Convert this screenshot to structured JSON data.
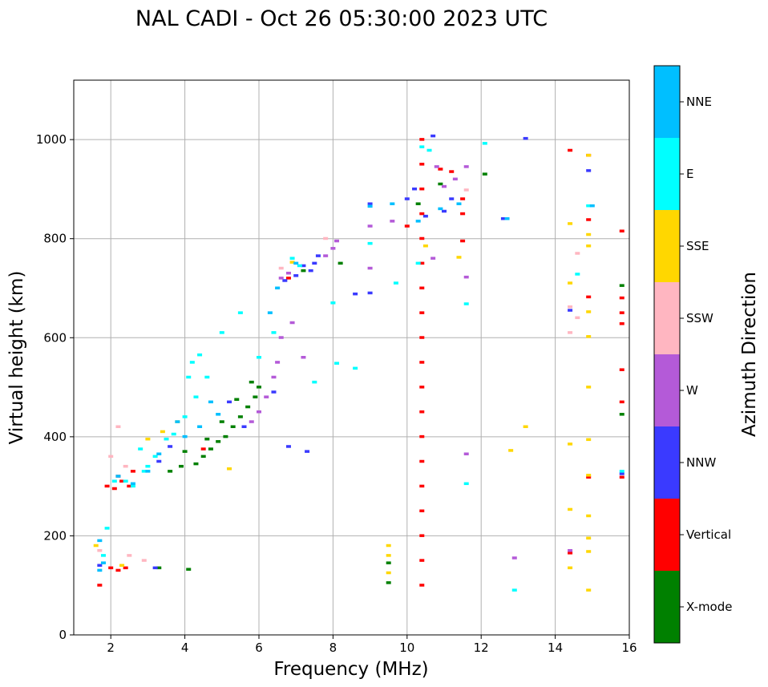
{
  "chart_data": {
    "type": "scatter",
    "title": "NAL CADI - Oct 26 05:30:00 2023 UTC",
    "xlabel": "Frequency (MHz)",
    "ylabel": "Virtual height (km)",
    "xlim": [
      1,
      16
    ],
    "ylim": [
      0,
      1120
    ],
    "xticks": [
      2,
      4,
      6,
      8,
      10,
      12,
      14,
      16
    ],
    "yticks": [
      0,
      200,
      400,
      600,
      800,
      1000
    ],
    "grid": true,
    "colorbar": {
      "label": "Azimuth Direction",
      "categories": [
        {
          "name": "X-mode",
          "color": "#008000"
        },
        {
          "name": "Vertical",
          "color": "#ff0000"
        },
        {
          "name": "NNW",
          "color": "#3a3aff"
        },
        {
          "name": "W",
          "color": "#b45ad8"
        },
        {
          "name": "SSW",
          "color": "#ffb6c1"
        },
        {
          "name": "SSE",
          "color": "#ffd700"
        },
        {
          "name": "E",
          "color": "#00ffff"
        },
        {
          "name": "NNE",
          "color": "#00bfff"
        }
      ]
    },
    "series": [
      {
        "name": "X-mode",
        "points": [
          [
            4.3,
            345
          ],
          [
            4.5,
            360
          ],
          [
            4.7,
            375
          ],
          [
            4.9,
            390
          ],
          [
            5.1,
            400
          ],
          [
            5.3,
            420
          ],
          [
            5.5,
            440
          ],
          [
            5.7,
            460
          ],
          [
            5.9,
            480
          ],
          [
            6.0,
            500
          ],
          [
            3.9,
            340
          ],
          [
            3.6,
            330
          ],
          [
            4.0,
            370
          ],
          [
            4.6,
            395
          ],
          [
            5.0,
            430
          ],
          [
            5.4,
            475
          ],
          [
            3.3,
            135
          ],
          [
            4.1,
            132
          ],
          [
            9.5,
            145
          ],
          [
            9.5,
            105
          ],
          [
            10.3,
            870
          ],
          [
            10.9,
            910
          ],
          [
            12.1,
            930
          ],
          [
            15.8,
            445
          ],
          [
            15.8,
            705
          ],
          [
            7.2,
            735
          ],
          [
            8.2,
            750
          ],
          [
            5.8,
            510
          ]
        ]
      },
      {
        "name": "Vertical",
        "points": [
          [
            1.9,
            300
          ],
          [
            2.1,
            295
          ],
          [
            2.3,
            310
          ],
          [
            2.5,
            300
          ],
          [
            2.2,
            320
          ],
          [
            2.0,
            135
          ],
          [
            2.2,
            130
          ],
          [
            2.4,
            135
          ],
          [
            1.7,
            100
          ],
          [
            10.4,
            100
          ],
          [
            10.4,
            150
          ],
          [
            10.4,
            200
          ],
          [
            10.4,
            250
          ],
          [
            10.4,
            300
          ],
          [
            10.4,
            350
          ],
          [
            10.4,
            400
          ],
          [
            10.4,
            450
          ],
          [
            10.4,
            500
          ],
          [
            10.4,
            550
          ],
          [
            10.4,
            600
          ],
          [
            10.4,
            650
          ],
          [
            10.4,
            700
          ],
          [
            10.4,
            750
          ],
          [
            10.4,
            800
          ],
          [
            10.4,
            850
          ],
          [
            10.4,
            900
          ],
          [
            10.4,
            950
          ],
          [
            10.4,
            1000
          ],
          [
            10.0,
            825
          ],
          [
            10.9,
            940
          ],
          [
            11.2,
            935
          ],
          [
            11.5,
            880
          ],
          [
            11.5,
            795
          ],
          [
            11.5,
            850
          ],
          [
            14.4,
            978
          ],
          [
            14.9,
            968
          ],
          [
            14.9,
            838
          ],
          [
            14.9,
            682
          ],
          [
            14.9,
            318
          ],
          [
            15.8,
            318
          ],
          [
            15.8,
            650
          ],
          [
            15.8,
            628
          ],
          [
            15.8,
            680
          ],
          [
            15.8,
            535
          ],
          [
            15.8,
            470
          ],
          [
            15.8,
            815
          ],
          [
            14.4,
            165
          ],
          [
            6.8,
            720
          ],
          [
            4.5,
            375
          ],
          [
            2.6,
            330
          ]
        ]
      },
      {
        "name": "NNW",
        "points": [
          [
            7.6,
            765
          ],
          [
            7.5,
            750
          ],
          [
            7.4,
            735
          ],
          [
            7.2,
            745
          ],
          [
            7.0,
            725
          ],
          [
            6.7,
            715
          ],
          [
            3.3,
            350
          ],
          [
            3.6,
            380
          ],
          [
            3.2,
            135
          ],
          [
            9.0,
            870
          ],
          [
            9.0,
            690
          ],
          [
            8.6,
            688
          ],
          [
            10.0,
            880
          ],
          [
            10.2,
            900
          ],
          [
            10.7,
            1007
          ],
          [
            11.2,
            880
          ],
          [
            11.0,
            855
          ],
          [
            12.6,
            840
          ],
          [
            13.2,
            1002
          ],
          [
            14.9,
            937
          ],
          [
            14.4,
            655
          ],
          [
            15.8,
            325
          ],
          [
            5.2,
            470
          ],
          [
            5.6,
            420
          ],
          [
            6.4,
            490
          ],
          [
            6.8,
            380
          ],
          [
            7.3,
            370
          ],
          [
            1.7,
            140
          ],
          [
            10.5,
            845
          ]
        ]
      },
      {
        "name": "W",
        "points": [
          [
            8.1,
            795
          ],
          [
            8.0,
            780
          ],
          [
            7.8,
            765
          ],
          [
            6.6,
            600
          ],
          [
            6.5,
            550
          ],
          [
            6.4,
            520
          ],
          [
            6.2,
            480
          ],
          [
            6.0,
            450
          ],
          [
            5.8,
            430
          ],
          [
            6.8,
            730
          ],
          [
            6.6,
            720
          ],
          [
            9.0,
            740
          ],
          [
            9.0,
            825
          ],
          [
            9.6,
            835
          ],
          [
            10.8,
            945
          ],
          [
            11.0,
            905
          ],
          [
            11.3,
            920
          ],
          [
            11.6,
            945
          ],
          [
            11.6,
            722
          ],
          [
            11.6,
            365
          ],
          [
            12.9,
            155
          ],
          [
            14.4,
            170
          ],
          [
            10.7,
            760
          ],
          [
            6.9,
            630
          ],
          [
            7.2,
            560
          ]
        ]
      },
      {
        "name": "SSW",
        "points": [
          [
            2.0,
            360
          ],
          [
            2.4,
            340
          ],
          [
            2.2,
            420
          ],
          [
            1.7,
            170
          ],
          [
            2.5,
            160
          ],
          [
            2.9,
            150
          ],
          [
            7.8,
            800
          ],
          [
            11.6,
            898
          ],
          [
            14.6,
            770
          ],
          [
            14.4,
            610
          ],
          [
            14.6,
            640
          ],
          [
            14.4,
            662
          ],
          [
            6.6,
            740
          ]
        ]
      },
      {
        "name": "SSE",
        "points": [
          [
            9.5,
            180
          ],
          [
            9.5,
            160
          ],
          [
            9.5,
            125
          ],
          [
            2.3,
            140
          ],
          [
            3.0,
            395
          ],
          [
            3.4,
            410
          ],
          [
            3.8,
            430
          ],
          [
            14.9,
            968
          ],
          [
            14.9,
            808
          ],
          [
            14.9,
            785
          ],
          [
            14.9,
            652
          ],
          [
            14.9,
            602
          ],
          [
            14.9,
            500
          ],
          [
            14.9,
            394
          ],
          [
            14.9,
            322
          ],
          [
            14.9,
            240
          ],
          [
            14.9,
            195
          ],
          [
            14.9,
            168
          ],
          [
            14.9,
            90
          ],
          [
            14.4,
            710
          ],
          [
            14.4,
            385
          ],
          [
            14.4,
            253
          ],
          [
            14.4,
            135
          ],
          [
            14.4,
            830
          ],
          [
            13.2,
            420
          ],
          [
            12.8,
            372
          ],
          [
            11.4,
            762
          ],
          [
            10.5,
            785
          ],
          [
            6.9,
            752
          ],
          [
            5.2,
            335
          ],
          [
            1.6,
            180
          ]
        ]
      },
      {
        "name": "E",
        "points": [
          [
            3.0,
            340
          ],
          [
            3.2,
            360
          ],
          [
            3.5,
            395
          ],
          [
            3.7,
            405
          ],
          [
            4.0,
            440
          ],
          [
            4.1,
            520
          ],
          [
            4.2,
            550
          ],
          [
            4.4,
            565
          ],
          [
            2.9,
            330
          ],
          [
            2.6,
            300
          ],
          [
            2.4,
            310
          ],
          [
            2.1,
            310
          ],
          [
            2.8,
            375
          ],
          [
            6.0,
            560
          ],
          [
            6.4,
            610
          ],
          [
            6.9,
            760
          ],
          [
            7.1,
            745
          ],
          [
            7.5,
            510
          ],
          [
            8.0,
            670
          ],
          [
            8.1,
            548
          ],
          [
            8.6,
            538
          ],
          [
            9.0,
            790
          ],
          [
            9.7,
            710
          ],
          [
            10.4,
            985
          ],
          [
            10.3,
            750
          ],
          [
            10.6,
            978
          ],
          [
            11.6,
            668
          ],
          [
            11.6,
            305
          ],
          [
            12.1,
            992
          ],
          [
            12.9,
            90
          ],
          [
            14.6,
            728
          ],
          [
            14.9,
            866
          ],
          [
            15.8,
            330
          ],
          [
            1.8,
            160
          ],
          [
            1.9,
            215
          ],
          [
            5.5,
            650
          ],
          [
            5.0,
            610
          ],
          [
            4.3,
            480
          ],
          [
            4.6,
            520
          ]
        ]
      },
      {
        "name": "NNE",
        "points": [
          [
            1.7,
            130
          ],
          [
            1.8,
            145
          ],
          [
            2.2,
            320
          ],
          [
            2.6,
            305
          ],
          [
            3.0,
            330
          ],
          [
            3.3,
            365
          ],
          [
            4.0,
            400
          ],
          [
            4.4,
            420
          ],
          [
            4.9,
            445
          ],
          [
            6.5,
            700
          ],
          [
            7.0,
            750
          ],
          [
            9.0,
            865
          ],
          [
            9.6,
            870
          ],
          [
            10.3,
            835
          ],
          [
            10.9,
            860
          ],
          [
            11.4,
            870
          ],
          [
            12.7,
            840
          ],
          [
            15.0,
            866
          ],
          [
            1.7,
            190
          ],
          [
            3.8,
            430
          ],
          [
            4.7,
            470
          ],
          [
            6.3,
            650
          ]
        ]
      }
    ]
  }
}
